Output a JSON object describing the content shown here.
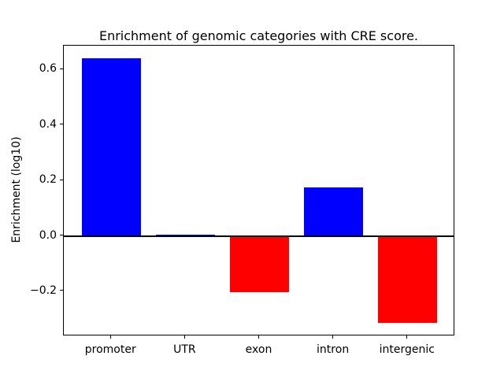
{
  "figure": {
    "background_color": "#ffffff",
    "axis_color": "#000000"
  },
  "chart_data": {
    "type": "bar",
    "title": "Enrichment of genomic categories with CRE score.",
    "xlabel": "",
    "ylabel": "Enrichment (log10)",
    "categories": [
      "promoter",
      "UTR",
      "exon",
      "intron",
      "intergenic"
    ],
    "values": [
      0.64,
      0.005,
      -0.203,
      0.174,
      -0.313
    ],
    "bar_colors": [
      "#0000ff",
      "#0000ff",
      "#ff0000",
      "#0000ff",
      "#ff0000"
    ],
    "positive_color": "#0000ff",
    "negative_color": "#ff0000",
    "yticks": [
      0.6,
      0.4,
      0.2,
      0.0,
      -0.2
    ],
    "ytick_labels": [
      "0.6",
      "0.4",
      "0.2",
      "0.0",
      "−0.2"
    ],
    "ylim": [
      -0.362,
      0.686
    ],
    "xlim": [
      -0.64,
      4.64
    ],
    "bar_width": 0.8,
    "zero_line": true,
    "grid": false,
    "legend": null
  }
}
